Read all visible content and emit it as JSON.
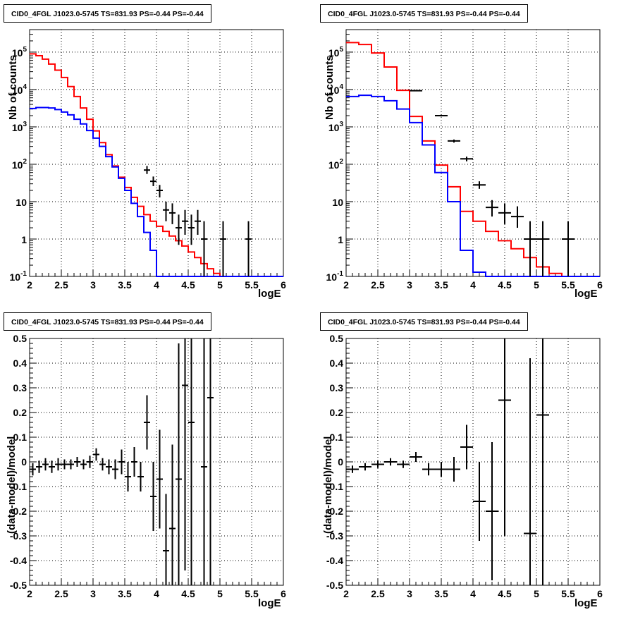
{
  "chart_data": [
    {
      "type": "line",
      "title": "CID0_4FGL J1023.0-5745 TS=831.93 PS=-0.44 PS=-0.44",
      "xlabel": "logE",
      "ylabel": "Nb of counts",
      "xlim": [
        2,
        6
      ],
      "ylim": [
        0.1,
        400000
      ],
      "yscale": "log",
      "grid": true,
      "x_ticks": [
        "2",
        "2.5",
        "3",
        "3.5",
        "4",
        "4.5",
        "5",
        "5.5",
        "6"
      ],
      "y_ticks": [
        "10^-1",
        "1",
        "10",
        "10^2",
        "10^3",
        "10^4",
        "10^5"
      ],
      "bin_width": 0.1,
      "series": [
        {
          "color": "#ff0000",
          "bin_edges_start": 2.0,
          "values": [
            90000,
            80000,
            65000,
            48000,
            33000,
            21000,
            12000,
            6500,
            3200,
            1600,
            780,
            380,
            180,
            90,
            45,
            24,
            13,
            7.5,
            4.5,
            3.0,
            2.2,
            1.6,
            1.2,
            0.9,
            0.65,
            0.45,
            0.32,
            0.22,
            0.16,
            0.12,
            0.1,
            0.1,
            0.1,
            0.1,
            0.1,
            0.1,
            0.1,
            0.1,
            0.1,
            0.1
          ]
        },
        {
          "color": "#0000ff",
          "bin_edges_start": 2.0,
          "values": [
            3100,
            3300,
            3300,
            3200,
            2900,
            2500,
            2100,
            1600,
            1200,
            800,
            500,
            300,
            160,
            85,
            42,
            20,
            9,
            4,
            1.5,
            0.5,
            0.1,
            0.1,
            0.1,
            0.1,
            0.1,
            0.1,
            0.1,
            0.1,
            0.1,
            0.1,
            0.1,
            0.1,
            0.1,
            0.1,
            0.1,
            0.1,
            0.1,
            0.1,
            0.1,
            0.1
          ]
        }
      ],
      "points": [
        {
          "x": 3.85,
          "y": 70,
          "lo": 55,
          "hi": 90
        },
        {
          "x": 3.95,
          "y": 35,
          "lo": 26,
          "hi": 47
        },
        {
          "x": 4.05,
          "y": 20,
          "lo": 13,
          "hi": 28
        },
        {
          "x": 4.15,
          "y": 6,
          "lo": 3,
          "hi": 10
        },
        {
          "x": 4.25,
          "y": 5,
          "lo": 2.5,
          "hi": 9
        },
        {
          "x": 4.35,
          "y": 2,
          "lo": 0.7,
          "hi": 4.5
        },
        {
          "x": 4.45,
          "y": 3,
          "lo": 1.3,
          "hi": 6
        },
        {
          "x": 4.55,
          "y": 2,
          "lo": 0.7,
          "hi": 4.5
        },
        {
          "x": 4.65,
          "y": 3,
          "lo": 1.3,
          "hi": 6
        },
        {
          "x": 4.75,
          "y": 1,
          "lo": 0.1,
          "hi": 3
        },
        {
          "x": 5.05,
          "y": 1,
          "lo": 0.1,
          "hi": 3
        },
        {
          "x": 5.45,
          "y": 1,
          "lo": 0.1,
          "hi": 3
        }
      ]
    },
    {
      "type": "line",
      "title": "CID0_4FGL J1023.0-5745 TS=831.93 PS=-0.44 PS=-0.44",
      "xlabel": "logE",
      "ylabel": "Nb of counts",
      "xlim": [
        2,
        6
      ],
      "ylim": [
        0.1,
        400000
      ],
      "yscale": "log",
      "grid": true,
      "x_ticks": [
        "2",
        "2.5",
        "3",
        "3.5",
        "4",
        "4.5",
        "5",
        "5.5",
        "6"
      ],
      "y_ticks": [
        "10^-1",
        "1",
        "10",
        "10^2",
        "10^3",
        "10^4",
        "10^5"
      ],
      "bin_width": 0.2,
      "series": [
        {
          "color": "#ff0000",
          "bin_edges_start": 2.0,
          "values": [
            180000,
            160000,
            95000,
            40000,
            9500,
            1900,
            420,
            95,
            25,
            5.5,
            3.0,
            1.6,
            0.9,
            0.55,
            0.32,
            0.18,
            0.12,
            0.1,
            0.1,
            0.1
          ]
        },
        {
          "color": "#0000ff",
          "bin_edges_start": 2.0,
          "values": [
            6500,
            7000,
            6500,
            5000,
            3000,
            1300,
            330,
            60,
            10,
            0.5,
            0.13,
            0.1,
            0.1,
            0.1,
            0.1,
            0.1,
            0.1,
            0.1,
            0.1,
            0.1
          ]
        }
      ],
      "points": [
        {
          "x": 3.1,
          "y": 9300,
          "lo": 9000,
          "hi": 9600
        },
        {
          "x": 3.5,
          "y": 2000,
          "lo": 1900,
          "hi": 2100
        },
        {
          "x": 3.7,
          "y": 420,
          "lo": 380,
          "hi": 460
        },
        {
          "x": 3.9,
          "y": 140,
          "lo": 120,
          "hi": 160
        },
        {
          "x": 4.1,
          "y": 28,
          "lo": 22,
          "hi": 35
        },
        {
          "x": 4.3,
          "y": 7,
          "lo": 4,
          "hi": 11
        },
        {
          "x": 4.5,
          "y": 5,
          "lo": 2.5,
          "hi": 9
        },
        {
          "x": 4.7,
          "y": 4,
          "lo": 2,
          "hi": 7.5
        },
        {
          "x": 4.9,
          "y": 1,
          "lo": 0.1,
          "hi": 3
        },
        {
          "x": 5.1,
          "y": 1,
          "lo": 0.1,
          "hi": 3
        },
        {
          "x": 5.5,
          "y": 1,
          "lo": 0.1,
          "hi": 3
        }
      ]
    },
    {
      "type": "scatter",
      "title": "CID0_4FGL J1023.0-5745 TS=831.93 PS=-0.44 PS=-0.44",
      "xlabel": "logE",
      "ylabel": "(data-model)/model",
      "xlim": [
        2,
        6
      ],
      "ylim": [
        -0.5,
        0.5
      ],
      "grid": true,
      "x_ticks": [
        "2",
        "2.5",
        "3",
        "3.5",
        "4",
        "4.5",
        "5",
        "5.5",
        "6"
      ],
      "y_ticks": [
        "-0.5",
        "-0.4",
        "-0.3",
        "-0.2",
        "-0.1",
        "0",
        "0.1",
        "0.2",
        "0.3",
        "0.4",
        "0.5"
      ],
      "bin_width": 0.1,
      "points": [
        {
          "x": 2.05,
          "y": -0.03,
          "err": 0.025
        },
        {
          "x": 2.15,
          "y": -0.02,
          "err": 0.025
        },
        {
          "x": 2.25,
          "y": -0.01,
          "err": 0.025
        },
        {
          "x": 2.35,
          "y": -0.02,
          "err": 0.025
        },
        {
          "x": 2.45,
          "y": -0.01,
          "err": 0.025
        },
        {
          "x": 2.55,
          "y": -0.01,
          "err": 0.02
        },
        {
          "x": 2.65,
          "y": -0.01,
          "err": 0.02
        },
        {
          "x": 2.75,
          "y": 0.0,
          "err": 0.02
        },
        {
          "x": 2.85,
          "y": -0.01,
          "err": 0.02
        },
        {
          "x": 2.95,
          "y": 0.0,
          "err": 0.025
        },
        {
          "x": 3.05,
          "y": 0.03,
          "err": 0.025
        },
        {
          "x": 3.15,
          "y": -0.01,
          "err": 0.025
        },
        {
          "x": 3.25,
          "y": -0.02,
          "err": 0.03
        },
        {
          "x": 3.35,
          "y": -0.03,
          "err": 0.04
        },
        {
          "x": 3.45,
          "y": 0.0,
          "err": 0.05
        },
        {
          "x": 3.55,
          "y": -0.06,
          "err": 0.06
        },
        {
          "x": 3.65,
          "y": 0.0,
          "err": 0.06
        },
        {
          "x": 3.75,
          "y": -0.06,
          "err": 0.06
        },
        {
          "x": 3.85,
          "y": 0.16,
          "err": 0.11
        },
        {
          "x": 3.95,
          "y": -0.14,
          "err": 0.14
        },
        {
          "x": 4.05,
          "y": -0.07,
          "err": 0.2
        },
        {
          "x": 4.15,
          "y": -0.36,
          "err": 0.23
        },
        {
          "x": 4.25,
          "y": -0.27,
          "err": 0.34
        },
        {
          "x": 4.35,
          "y": -0.07,
          "err": 0.55
        },
        {
          "x": 4.45,
          "y": 0.31,
          "err": 0.75
        },
        {
          "x": 4.55,
          "y": 0.16,
          "err": 0.9
        },
        {
          "x": 4.75,
          "y": -0.02,
          "err": 1.0
        },
        {
          "x": 4.85,
          "y": 0.26,
          "err": 1.0
        }
      ]
    },
    {
      "type": "scatter",
      "title": "CID0_4FGL J1023.0-5745 TS=831.93 PS=-0.44 PS=-0.44",
      "xlabel": "logE",
      "ylabel": "(data-model)/model",
      "xlim": [
        2,
        6
      ],
      "ylim": [
        -0.5,
        0.5
      ],
      "grid": true,
      "x_ticks": [
        "2",
        "2.5",
        "3",
        "3.5",
        "4",
        "4.5",
        "5",
        "5.5",
        "6"
      ],
      "y_ticks": [
        "-0.5",
        "-0.4",
        "-0.3",
        "-0.2",
        "-0.1",
        "0",
        "0.1",
        "0.2",
        "0.3",
        "0.4",
        "0.5"
      ],
      "bin_width": 0.2,
      "points": [
        {
          "x": 2.1,
          "y": -0.03,
          "err": 0.015
        },
        {
          "x": 2.3,
          "y": -0.02,
          "err": 0.015
        },
        {
          "x": 2.5,
          "y": -0.01,
          "err": 0.015
        },
        {
          "x": 2.7,
          "y": 0.0,
          "err": 0.015
        },
        {
          "x": 2.9,
          "y": -0.01,
          "err": 0.015
        },
        {
          "x": 3.1,
          "y": 0.02,
          "err": 0.02
        },
        {
          "x": 3.3,
          "y": -0.03,
          "err": 0.025
        },
        {
          "x": 3.5,
          "y": -0.03,
          "err": 0.03
        },
        {
          "x": 3.7,
          "y": -0.03,
          "err": 0.05
        },
        {
          "x": 3.9,
          "y": 0.06,
          "err": 0.09
        },
        {
          "x": 4.1,
          "y": -0.16,
          "err": 0.16
        },
        {
          "x": 4.3,
          "y": -0.2,
          "err": 0.28
        },
        {
          "x": 4.5,
          "y": 0.25,
          "err": 0.55
        },
        {
          "x": 4.9,
          "y": -0.29,
          "err": 0.71
        },
        {
          "x": 5.1,
          "y": 0.19,
          "err": 0.9
        }
      ]
    }
  ]
}
